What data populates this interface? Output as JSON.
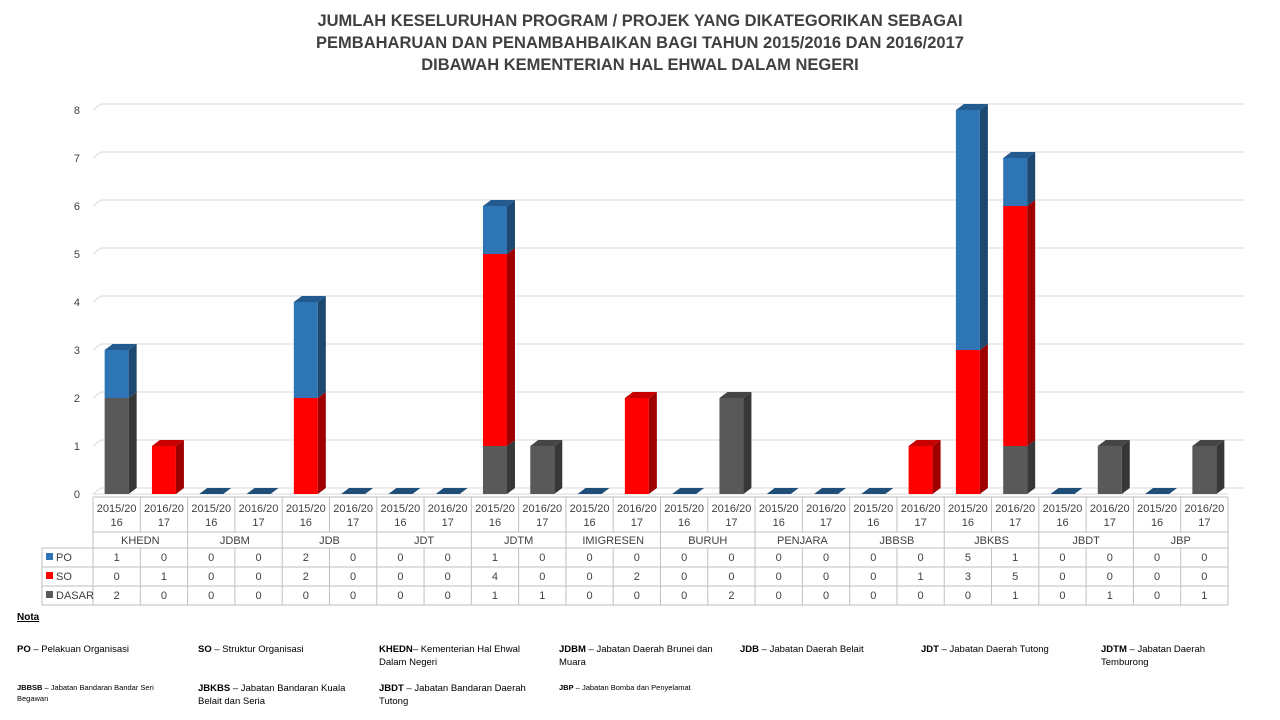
{
  "title_lines": [
    "JUMLAH KESELURUHAN PROGRAM / PROJEK YANG DIKATEGORIKAN SEBAGAI",
    "PEMBAHARUAN DAN PENAMBAHBAIKAN BAGI TAHUN 2015/2016 DAN 2016/2017",
    "DIBAWAH KEMENTERIAN HAL EHWAL DALAM NEGERI"
  ],
  "colors": {
    "PO": "#2e75b6",
    "SO": "#ff0000",
    "DASAR": "#595959",
    "grid": "#d9d9d9"
  },
  "chart_data": {
    "type": "bar",
    "stacked": true,
    "three_d": true,
    "ylim": [
      0,
      8
    ],
    "yticks": [
      0,
      1,
      2,
      3,
      4,
      5,
      6,
      7,
      8
    ],
    "grid": true,
    "legend_position": "data-table",
    "year_lines": [
      "2015/20",
      "16",
      "2016/20",
      "17"
    ],
    "groups": [
      "KHEDN",
      "JDBM",
      "JDB",
      "JDT",
      "JDTM",
      "IMIGRESEN",
      "BURUH",
      "PENJARA",
      "JBBSB",
      "JBKBS",
      "JBDT",
      "JBP"
    ],
    "series": [
      {
        "name": "DASAR",
        "values": [
          2,
          0,
          0,
          0,
          0,
          0,
          0,
          0,
          1,
          1,
          0,
          0,
          0,
          2,
          0,
          0,
          0,
          0,
          0,
          1,
          0,
          1,
          0,
          1
        ]
      },
      {
        "name": "SO",
        "values": [
          0,
          1,
          0,
          0,
          2,
          0,
          0,
          0,
          4,
          0,
          0,
          2,
          0,
          0,
          0,
          0,
          0,
          1,
          3,
          5,
          0,
          0,
          0,
          0
        ]
      },
      {
        "name": "PO",
        "values": [
          1,
          0,
          0,
          0,
          2,
          0,
          0,
          0,
          1,
          0,
          0,
          0,
          0,
          0,
          0,
          0,
          0,
          0,
          5,
          1,
          0,
          0,
          0,
          0
        ]
      }
    ],
    "table_order": [
      "PO",
      "SO",
      "DASAR"
    ]
  },
  "notes": {
    "heading": "Nota",
    "items": [
      {
        "abbr": "PO",
        "sep": " – ",
        "text": "Pelakuan Organisasi"
      },
      {
        "abbr": "SO",
        "sep": " – ",
        "text": "Struktur Organisasi"
      },
      {
        "abbr": "KHEDN",
        "sep": "–  ",
        "text": "Kementerian Hal Ehwal Dalam Negeri"
      },
      {
        "abbr": "JDBM",
        "sep": " – ",
        "text": "Jabatan Daerah Brunei dan Muara"
      },
      {
        "abbr": "JDB",
        "sep": " – ",
        "text": "Jabatan Daerah Belait"
      },
      {
        "abbr": "JDT",
        "sep": " – ",
        "text": "Jabatan Daerah Tutong"
      },
      {
        "abbr": "JDTM",
        "sep": " – ",
        "text": "Jabatan Daerah Temburong"
      },
      {
        "abbr": "JBBSB",
        "sep": " – ",
        "text": "Jabatan Bandaran Bandar Seri Begawan"
      },
      {
        "abbr": "JBKBS",
        "sep": " – ",
        "text": "Jabatan Bandaran Kuala Belait dan Seria"
      },
      {
        "abbr": "JBDT",
        "sep": " – ",
        "text": "Jabatan Bandaran Daerah Tutong"
      },
      {
        "abbr": "JBP",
        "sep": " – ",
        "text": "Jabatan Bomba dan Penyelamat"
      }
    ]
  }
}
